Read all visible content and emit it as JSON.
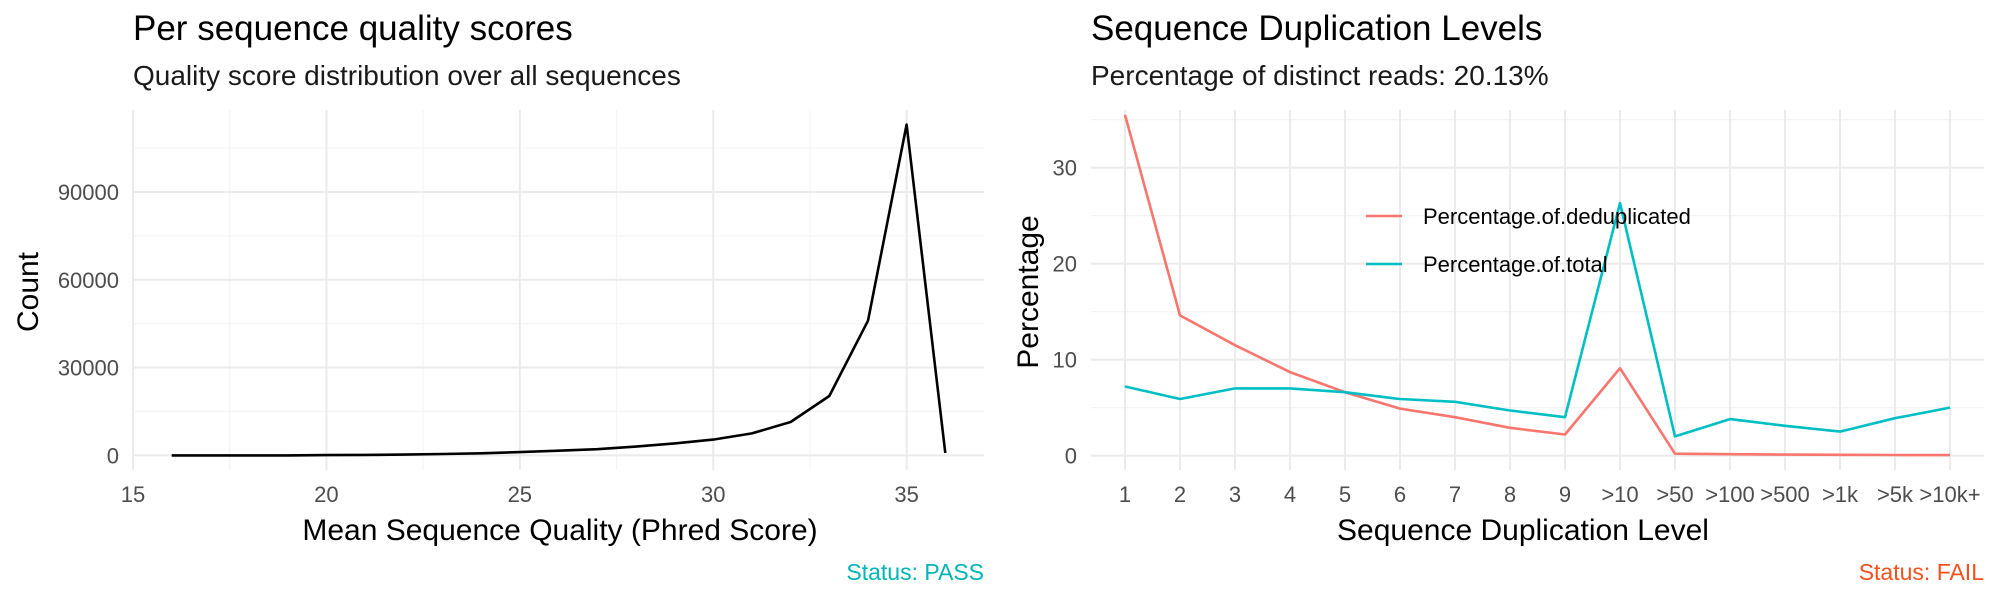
{
  "chart_data": [
    {
      "type": "line",
      "title": "Per sequence quality scores",
      "subtitle": "Quality score distribution over all sequences",
      "xlabel": "Mean Sequence Quality (Phred Score)",
      "ylabel": "Count",
      "xlim": [
        15,
        37
      ],
      "ylim": [
        -5000,
        118000
      ],
      "x_ticks": [
        15,
        20,
        25,
        30,
        35
      ],
      "y_ticks": [
        0,
        30000,
        60000,
        90000
      ],
      "grid": true,
      "series": [
        {
          "color": "#000000",
          "x": [
            16,
            17,
            18,
            19,
            20,
            21,
            22,
            23,
            24,
            25,
            26,
            27,
            28,
            29,
            30,
            31,
            32,
            33,
            34,
            35,
            36
          ],
          "y": [
            0,
            0,
            0,
            0,
            100,
            150,
            250,
            450,
            700,
            1100,
            1600,
            2100,
            3000,
            4100,
            5400,
            7500,
            11400,
            20300,
            46000,
            113000,
            800
          ]
        }
      ],
      "status": {
        "text": "Status: PASS",
        "color": "#00b5b8"
      }
    },
    {
      "type": "line",
      "title": "Sequence Duplication Levels",
      "subtitle": "Percentage of distinct reads: 20.13%",
      "xlabel": "Sequence Duplication Level",
      "ylabel": "Percentage",
      "categories": [
        "1",
        "2",
        "3",
        "4",
        "5",
        "6",
        "7",
        "8",
        "9",
        ">10",
        ">50",
        ">100",
        ">500",
        ">1k",
        ">5k",
        ">10k+"
      ],
      "ylim": [
        -1.5,
        36
      ],
      "y_ticks": [
        0,
        10,
        20,
        30
      ],
      "grid": true,
      "legend_position": "inside-top-center",
      "series": [
        {
          "name": "Percentage.of.deduplicated",
          "color": "#f8766d",
          "values": [
            35.5,
            14.6,
            11.5,
            8.7,
            6.6,
            4.9,
            4.0,
            2.9,
            2.2,
            9.1,
            0.2,
            0.15,
            0.1,
            0.08,
            0.06,
            0.05
          ]
        },
        {
          "name": "Percentage.of.total",
          "color": "#00bfc4",
          "values": [
            7.2,
            5.9,
            7.0,
            7.0,
            6.6,
            5.9,
            5.6,
            4.7,
            4.0,
            26.3,
            2.0,
            3.8,
            3.1,
            2.5,
            3.9,
            5.0
          ]
        }
      ],
      "status": {
        "text": "Status: FAIL",
        "color": "#f4511e"
      }
    }
  ]
}
